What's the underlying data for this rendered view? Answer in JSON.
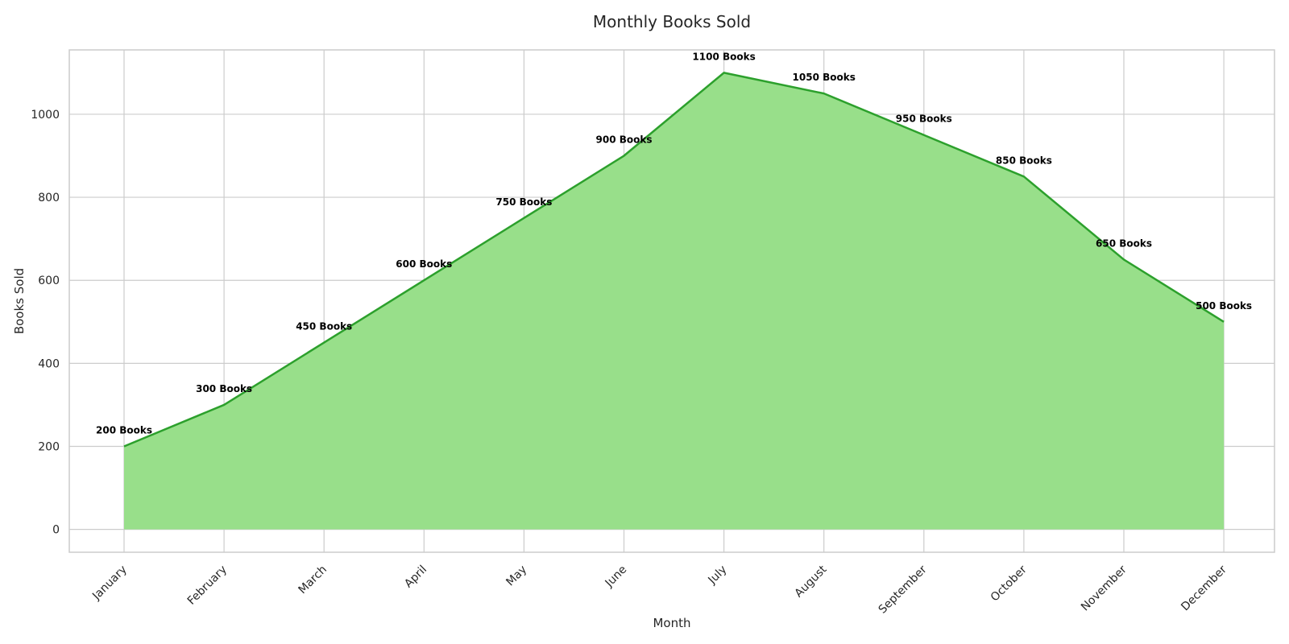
{
  "chart_data": {
    "type": "area",
    "title": "Monthly Books Sold",
    "xlabel": "Month",
    "ylabel": "Books Sold",
    "categories": [
      "January",
      "February",
      "March",
      "April",
      "May",
      "June",
      "July",
      "August",
      "September",
      "October",
      "November",
      "December"
    ],
    "values": [
      200,
      300,
      450,
      600,
      750,
      900,
      1100,
      1050,
      950,
      850,
      650,
      500
    ],
    "data_labels": [
      "200 Books",
      "300 Books",
      "450 Books",
      "600 Books",
      "750 Books",
      "900 Books",
      "1100 Books",
      "1050 Books",
      "950 Books",
      "850 Books",
      "650 Books",
      "500 Books"
    ],
    "yticks": [
      0,
      200,
      400,
      600,
      800,
      1000
    ],
    "ylim": [
      -55,
      1155
    ],
    "grid": true,
    "colors": {
      "line": "#2ca02c",
      "fill": "#98df8a"
    }
  }
}
